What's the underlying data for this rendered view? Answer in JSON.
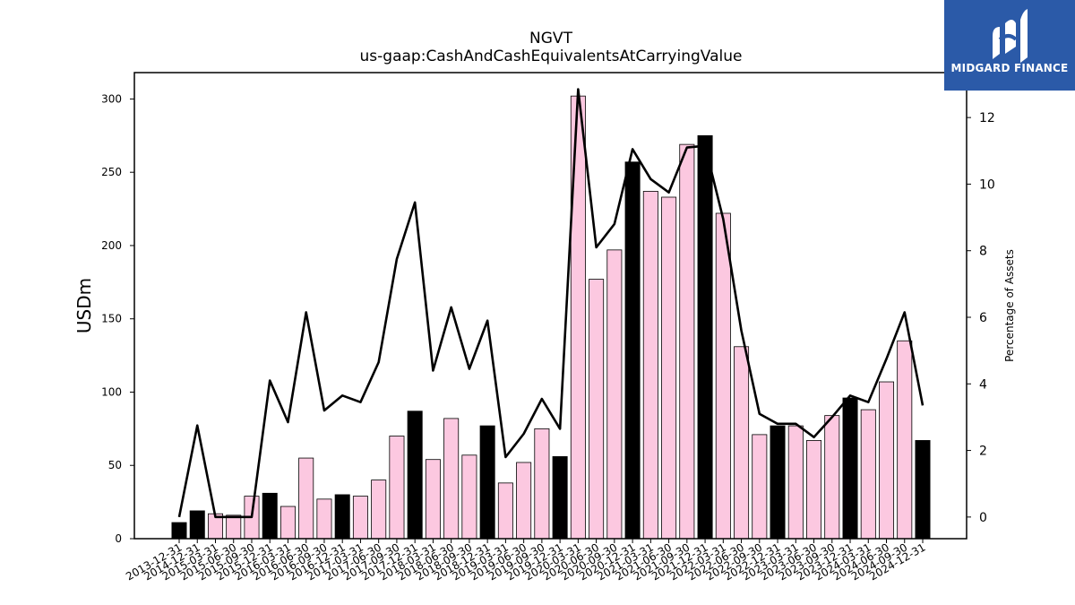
{
  "chart_data": {
    "type": "bar",
    "title": "NGVT",
    "subtitle": "us-gaap:CashAndCashEquivalentsAtCarryingValue",
    "ylabel": "USDm",
    "y2label": "Percentage of Assets",
    "ylim": [
      0,
      318
    ],
    "y2lim": [
      -0.65,
      13.35
    ],
    "yticks": [
      0,
      50,
      100,
      150,
      200,
      250,
      300
    ],
    "y2ticks": [
      0,
      2,
      4,
      6,
      8,
      10,
      12
    ],
    "categories": [
      "2013-12-31",
      "2014-12-31",
      "2015-03-31",
      "2015-06-30",
      "2015-09-30",
      "2015-12-31",
      "2016-03-31",
      "2016-06-30",
      "2016-09-30",
      "2016-12-31",
      "2017-03-31",
      "2017-06-30",
      "2017-09-30",
      "2017-12-31",
      "2018-03-31",
      "2018-06-30",
      "2018-09-30",
      "2018-12-31",
      "2019-03-31",
      "2019-06-30",
      "2019-09-30",
      "2019-12-31",
      "2020-03-31",
      "2020-06-30",
      "2020-09-30",
      "2020-12-31",
      "2021-03-31",
      "2021-06-30",
      "2021-09-30",
      "2021-12-31",
      "2022-03-31",
      "2022-06-30",
      "2022-09-30",
      "2022-12-31",
      "2023-03-31",
      "2023-06-30",
      "2023-09-30",
      "2023-12-31",
      "2024-03-31",
      "2024-06-30",
      "2024-09-30",
      "2024-12-31"
    ],
    "series": [
      {
        "kind": "bar",
        "axis": "left",
        "values": [
          11,
          19,
          17,
          16,
          29,
          31,
          22,
          55,
          27,
          30,
          29,
          40,
          70,
          87,
          54,
          82,
          57,
          77,
          38,
          52,
          75,
          56,
          302,
          177,
          197,
          257,
          237,
          233,
          269,
          275,
          222,
          131,
          71,
          77,
          77,
          67,
          84,
          96,
          88,
          107,
          135,
          67
        ],
        "year_end_color": "#000000",
        "quarter_color": "#fcc8e0",
        "edge_color": "#000000"
      },
      {
        "kind": "line",
        "axis": "right",
        "color": "#000000",
        "values": [
          0.0,
          2.75,
          0.0,
          0.0,
          0.0,
          4.1,
          2.85,
          6.15,
          3.2,
          3.65,
          3.45,
          4.65,
          7.75,
          9.45,
          4.4,
          6.3,
          4.45,
          5.9,
          1.8,
          2.5,
          3.55,
          2.65,
          12.85,
          8.1,
          8.8,
          11.05,
          10.15,
          9.75,
          11.1,
          11.15,
          8.95,
          5.6,
          3.1,
          2.8,
          2.8,
          2.4,
          3.0,
          3.65,
          3.45,
          4.75,
          6.15,
          3.35
        ]
      }
    ],
    "legend": "none",
    "grid": false
  },
  "logo": {
    "text": "MIDGARD FINANCE",
    "icon": "midgard-m-logo",
    "background": "#2b5aa8"
  }
}
